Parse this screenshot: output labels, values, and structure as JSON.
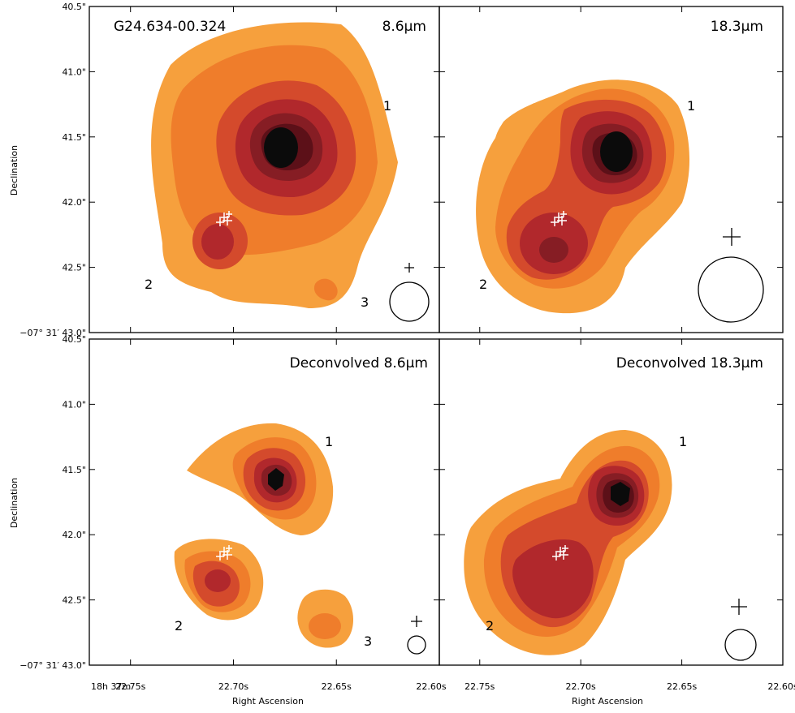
{
  "chart_data": [
    {
      "type": "contour",
      "id": "p1",
      "title": "8.6μm",
      "target_label": "G24.634-00.324",
      "beam_scale": 1.0,
      "sources": [
        {
          "label": "1",
          "ra_s": 22.682,
          "dec_arcsec": 41.58
        },
        {
          "label": "2",
          "ra_s": 22.713,
          "dec_arcsec": 42.33
        },
        {
          "label": "3",
          "ra_s": 22.657,
          "dec_arcsec": 42.65
        }
      ],
      "source_labels": [
        {
          "text": "1",
          "ra_s": 22.663,
          "dec_arcsec": 41.24
        },
        {
          "text": "2",
          "ra_s": 22.737,
          "dec_arcsec": 42.62
        },
        {
          "text": "3",
          "ra_s": 22.653,
          "dec_arcsec": 42.8
        }
      ]
    },
    {
      "type": "contour",
      "id": "p2",
      "title": "18.3μm",
      "target_label": "",
      "beam_scale": 1.7,
      "sources": [
        {
          "label": "1",
          "ra_s": 22.683,
          "dec_arcsec": 41.6
        },
        {
          "label": "2",
          "ra_s": 22.714,
          "dec_arcsec": 42.33
        }
      ],
      "source_labels": [
        {
          "text": "1",
          "ra_s": 22.663,
          "dec_arcsec": 41.24
        },
        {
          "text": "2",
          "ra_s": 22.737,
          "dec_arcsec": 42.62
        }
      ]
    },
    {
      "type": "contour",
      "id": "p3",
      "title": "Deconvolved 8.6μm",
      "target_label": "",
      "beam_scale": 0.5,
      "sources": [
        {
          "label": "1",
          "ra_s": 22.683,
          "dec_arcsec": 41.58
        },
        {
          "label": "2",
          "ra_s": 22.714,
          "dec_arcsec": 42.33
        },
        {
          "label": "3",
          "ra_s": 22.657,
          "dec_arcsec": 42.67
        }
      ],
      "source_labels": [
        {
          "text": "1",
          "ra_s": 22.663,
          "dec_arcsec": 41.24
        },
        {
          "text": "2",
          "ra_s": 22.737,
          "dec_arcsec": 42.62
        },
        {
          "text": "3",
          "ra_s": 22.653,
          "dec_arcsec": 42.8
        }
      ]
    },
    {
      "type": "contour",
      "id": "p4",
      "title": "Deconvolved 18.3μm",
      "target_label": "",
      "beam_scale": 0.8,
      "sources": [
        {
          "label": "1",
          "ra_s": 22.681,
          "dec_arcsec": 41.63
        },
        {
          "label": "2",
          "ra_s": 22.712,
          "dec_arcsec": 42.28
        }
      ],
      "source_labels": [
        {
          "text": "1",
          "ra_s": 22.663,
          "dec_arcsec": 41.24
        },
        {
          "text": "2",
          "ra_s": 22.737,
          "dec_arcsec": 42.62
        }
      ]
    }
  ],
  "axes": {
    "xlabel": "Right Ascension",
    "ylabel": "Declination",
    "ra_range": [
      22.77,
      22.6
    ],
    "dec_range": [
      40.5,
      43.0
    ],
    "x_tick_values": [
      22.75,
      22.7,
      22.65,
      22.6
    ],
    "x_tick_labels": [
      "22.75s",
      "22.70s",
      "22.65s",
      "22.60s"
    ],
    "x_prefix_label": "18h 37m",
    "y_tick_values": [
      40.5,
      41.0,
      41.5,
      42.0,
      42.5,
      43.0
    ],
    "y_tick_labels": [
      "40.5\"",
      "41.0\"",
      "41.5\"",
      "42.0\"",
      "42.5\"",
      "−07° 31′ 43.0\""
    ]
  },
  "contour_colors": [
    "#f6a03d",
    "#ef7d2b",
    "#d44a2c",
    "#b1282c",
    "#861d24",
    "#5c1018",
    "#0b0b0b"
  ]
}
